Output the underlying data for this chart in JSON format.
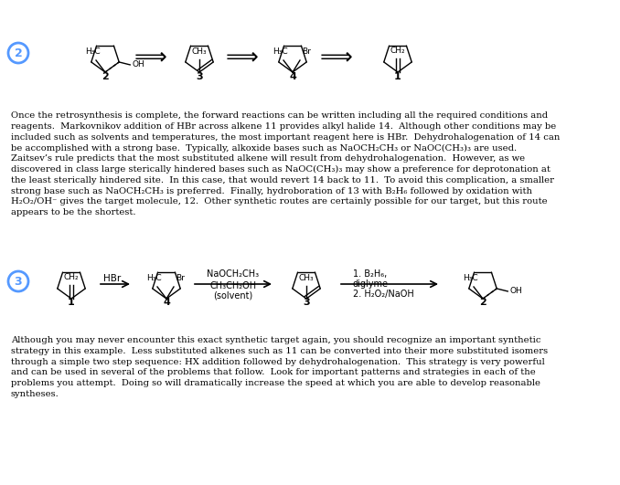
{
  "bg_color": "#ffffff",
  "circle_color": "#5599ff",
  "paragraph1_lines": [
    "Once the retrosynthesis is complete, the forward reactions can be written including all the required conditions and",
    "reagents.  Markovnikov addition of HBr across alkene ±1 provides alkyl halide ±4.  Although other conditions may be",
    "included such as solvents and temperatures, the most important reagent here is HBr.  Dehydrohalogenation of ±4 can",
    "be accomplished with a strong base.  Typically, alkoxide bases such as NaOCH₂CH₃ or NaOC(CH₃)₃ are used.",
    "Zaitsev’s rule predicts that the most substituted alkene will result from dehydrohalogenation.  However, as we",
    "discovered in class large sterically hindered bases such as NaOC(CH₃)₃ may show a preference for deprotonation at",
    "the least sterically hindered site.  In this case, that would revert ±4 back to ±1.  To avoid this complication, a smaller",
    "strong base such as NaOCH₂CH₃ is preferred.  Finally, hydroboration of ±3 with B₂H₆ followed by oxidation with",
    "H₂O₂/OH⁻ gives the target molecule, ±2.  Other synthetic routes are certainly possible for our target, but this route",
    "appears to be the shortest."
  ],
  "paragraph2_lines": [
    "Although you may never encounter this exact synthetic target again, you should recognize an important synthetic",
    "strategy in this example.  Less substituted alkenes such as ±1 can be converted into their more substituted isomers",
    "through a simple two step sequence: HX addition followed by dehydrohalogenation.  This strategy is very powerful",
    "and can be used in several of the problems that follow.  Look for important patterns and strategies in each of the",
    "problems you attempt.  Doing so will dramatically increase the speed at which you are able to develop reasonable",
    "syntheses."
  ]
}
